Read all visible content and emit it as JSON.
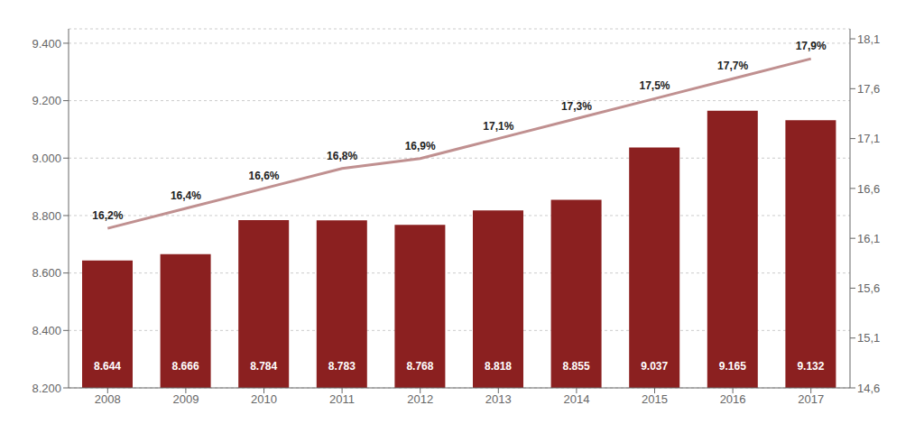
{
  "chart_data": {
    "type": "bar",
    "categories": [
      "2008",
      "2009",
      "2010",
      "2011",
      "2012",
      "2013",
      "2014",
      "2015",
      "2016",
      "2017"
    ],
    "series": [
      {
        "type": "bar",
        "color": "#8B2020",
        "values": [
          8644,
          8666,
          8784,
          8783,
          8768,
          8818,
          8855,
          9037,
          9165,
          9132
        ],
        "value_labels": [
          "8.644",
          "8.666",
          "8.784",
          "8.783",
          "8.768",
          "8.818",
          "8.855",
          "9.037",
          "9.165",
          "9.132"
        ]
      },
      {
        "type": "line",
        "axis": "y2",
        "color": "#C09090",
        "values": [
          16.2,
          16.4,
          16.6,
          16.8,
          16.9,
          17.1,
          17.3,
          17.5,
          17.7,
          17.9
        ],
        "value_labels": [
          "16,2%",
          "16,4%",
          "16,6%",
          "16,8%",
          "16,9%",
          "17,1%",
          "17,3%",
          "17,5%",
          "17,7%",
          "17,9%"
        ]
      }
    ],
    "ylim": [
      8200,
      9450
    ],
    "yticks": [
      {
        "value": 8200,
        "label": "8.200"
      },
      {
        "value": 8400,
        "label": "8.400"
      },
      {
        "value": 8600,
        "label": "8.600"
      },
      {
        "value": 8800,
        "label": "8.800"
      },
      {
        "value": 9000,
        "label": "9.000"
      },
      {
        "value": 9200,
        "label": "9.200"
      },
      {
        "value": 9400,
        "label": "9.400"
      }
    ],
    "y2lim": [
      14.6,
      18.2
    ],
    "y2ticks": [
      {
        "value": 14.6,
        "label": "14,6"
      },
      {
        "value": 15.1,
        "label": "15,1"
      },
      {
        "value": 15.6,
        "label": "15,6"
      },
      {
        "value": 16.1,
        "label": "16,1"
      },
      {
        "value": 16.6,
        "label": "16,6"
      },
      {
        "value": 17.1,
        "label": "17,1"
      },
      {
        "value": 17.6,
        "label": "17,6"
      },
      {
        "value": 18.1,
        "label": "18,1"
      }
    ],
    "grid": true,
    "data_labels": true
  }
}
